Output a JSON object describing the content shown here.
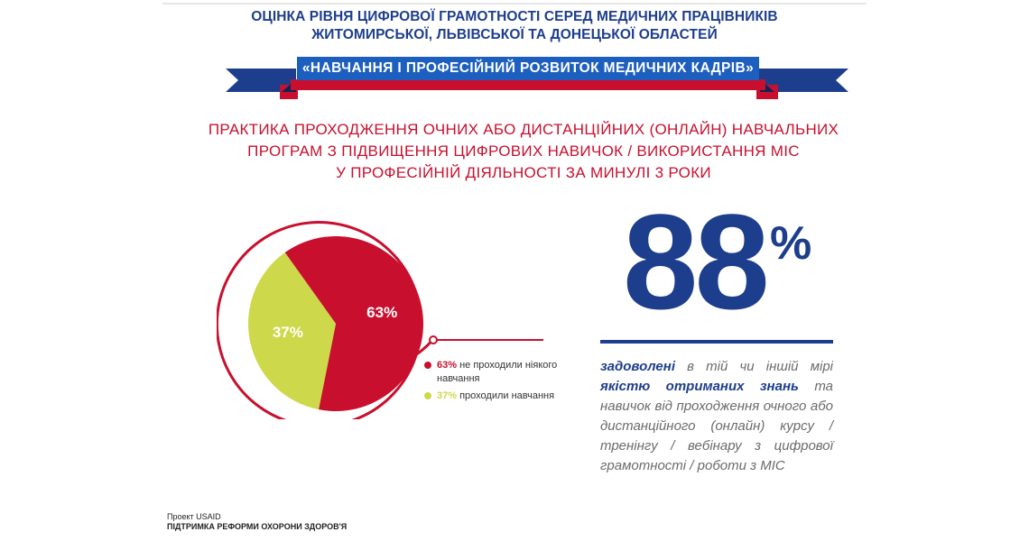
{
  "header": {
    "title_line1": "ОЦІНКА РІВНЯ ЦИФРОВОЇ ГРАМОТНОСТІ СЕРЕД МЕДИЧНИХ ПРАЦІВНИКІВ",
    "title_line2": "ЖИТОМИРСЬКОЇ, ЛЬВІВСЬКОЇ ТА ДОНЕЦЬКОЇ ОБЛАСТЕЙ",
    "banner": "«НАВЧАННЯ І ПРОФЕСІЙНИЙ РОЗВИТОК МЕДИЧНИХ КАДРІВ»"
  },
  "subtitle": {
    "line1": "ПРАКТИКА ПРОХОДЖЕННЯ ОЧНИХ АБО ДИСТАНЦІЙНИХ (ОНЛАЙН) НАВЧАЛЬНИХ",
    "line2": "ПРОГРАМ З ПІДВИЩЕННЯ ЦИФРОВИХ НАВИЧОК / ВИКОРИСТАННЯ МІС",
    "line3": "У ПРОФЕСІЙНІЙ ДІЯЛЬНОСТІ ЗА МИНУЛІ 3 РОКИ"
  },
  "chart_data": {
    "type": "pie",
    "slices": [
      {
        "value": 63,
        "label": "63%",
        "legend_pct": "63%",
        "legend_text": "не проходили ніякого навчання",
        "color": "#c8102e"
      },
      {
        "value": 37,
        "label": "37%",
        "legend_pct": "37%",
        "legend_text": "проходили навчання",
        "color": "#cdd84a"
      }
    ]
  },
  "stat": {
    "number": "88",
    "percent": "%",
    "desc_bold1": "задоволені",
    "desc_text1": " в тій чи іншій мірі ",
    "desc_bold2": "якістю отриманих знань",
    "desc_text2": " та навичок від проходження очного або дистанційного (онлайн) курсу / тренінгу / вебінару з цифрової грамотності / роботи з МІС"
  },
  "footer": {
    "line1": "Проект USAID",
    "line2": "ПІДТРИМКА РЕФОРМИ ОХОРОНИ ЗДОРОВ'Я"
  },
  "colors": {
    "navy": "#1d3e8c",
    "red": "#c8102e",
    "lime": "#cdd84a",
    "blue_banner": "#1d5fbf"
  }
}
